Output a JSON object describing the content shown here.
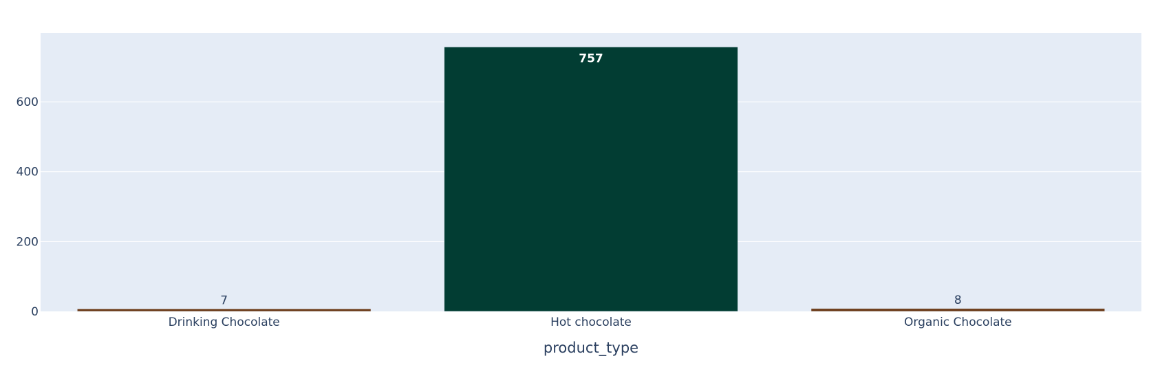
{
  "chart_data": {
    "type": "bar",
    "categories": [
      "Drinking Chocolate",
      "Hot chocolate",
      "Organic Chocolate"
    ],
    "values": [
      7,
      757,
      8
    ],
    "bar_colors": [
      "#6b3a17",
      "#023d33",
      "#6b3a17"
    ],
    "data_labels": [
      "7",
      "757",
      "8"
    ],
    "title": "",
    "xlabel": "product_type",
    "ylabel": "",
    "ylim": [
      0,
      797
    ],
    "yticks": [
      0,
      200,
      400,
      600
    ],
    "ytick_labels": [
      "0",
      "200",
      "400",
      "600"
    ],
    "grid": true,
    "legend": false,
    "plot_bgcolor": "#e5ecf6",
    "text_color": "#2a3f5f"
  }
}
